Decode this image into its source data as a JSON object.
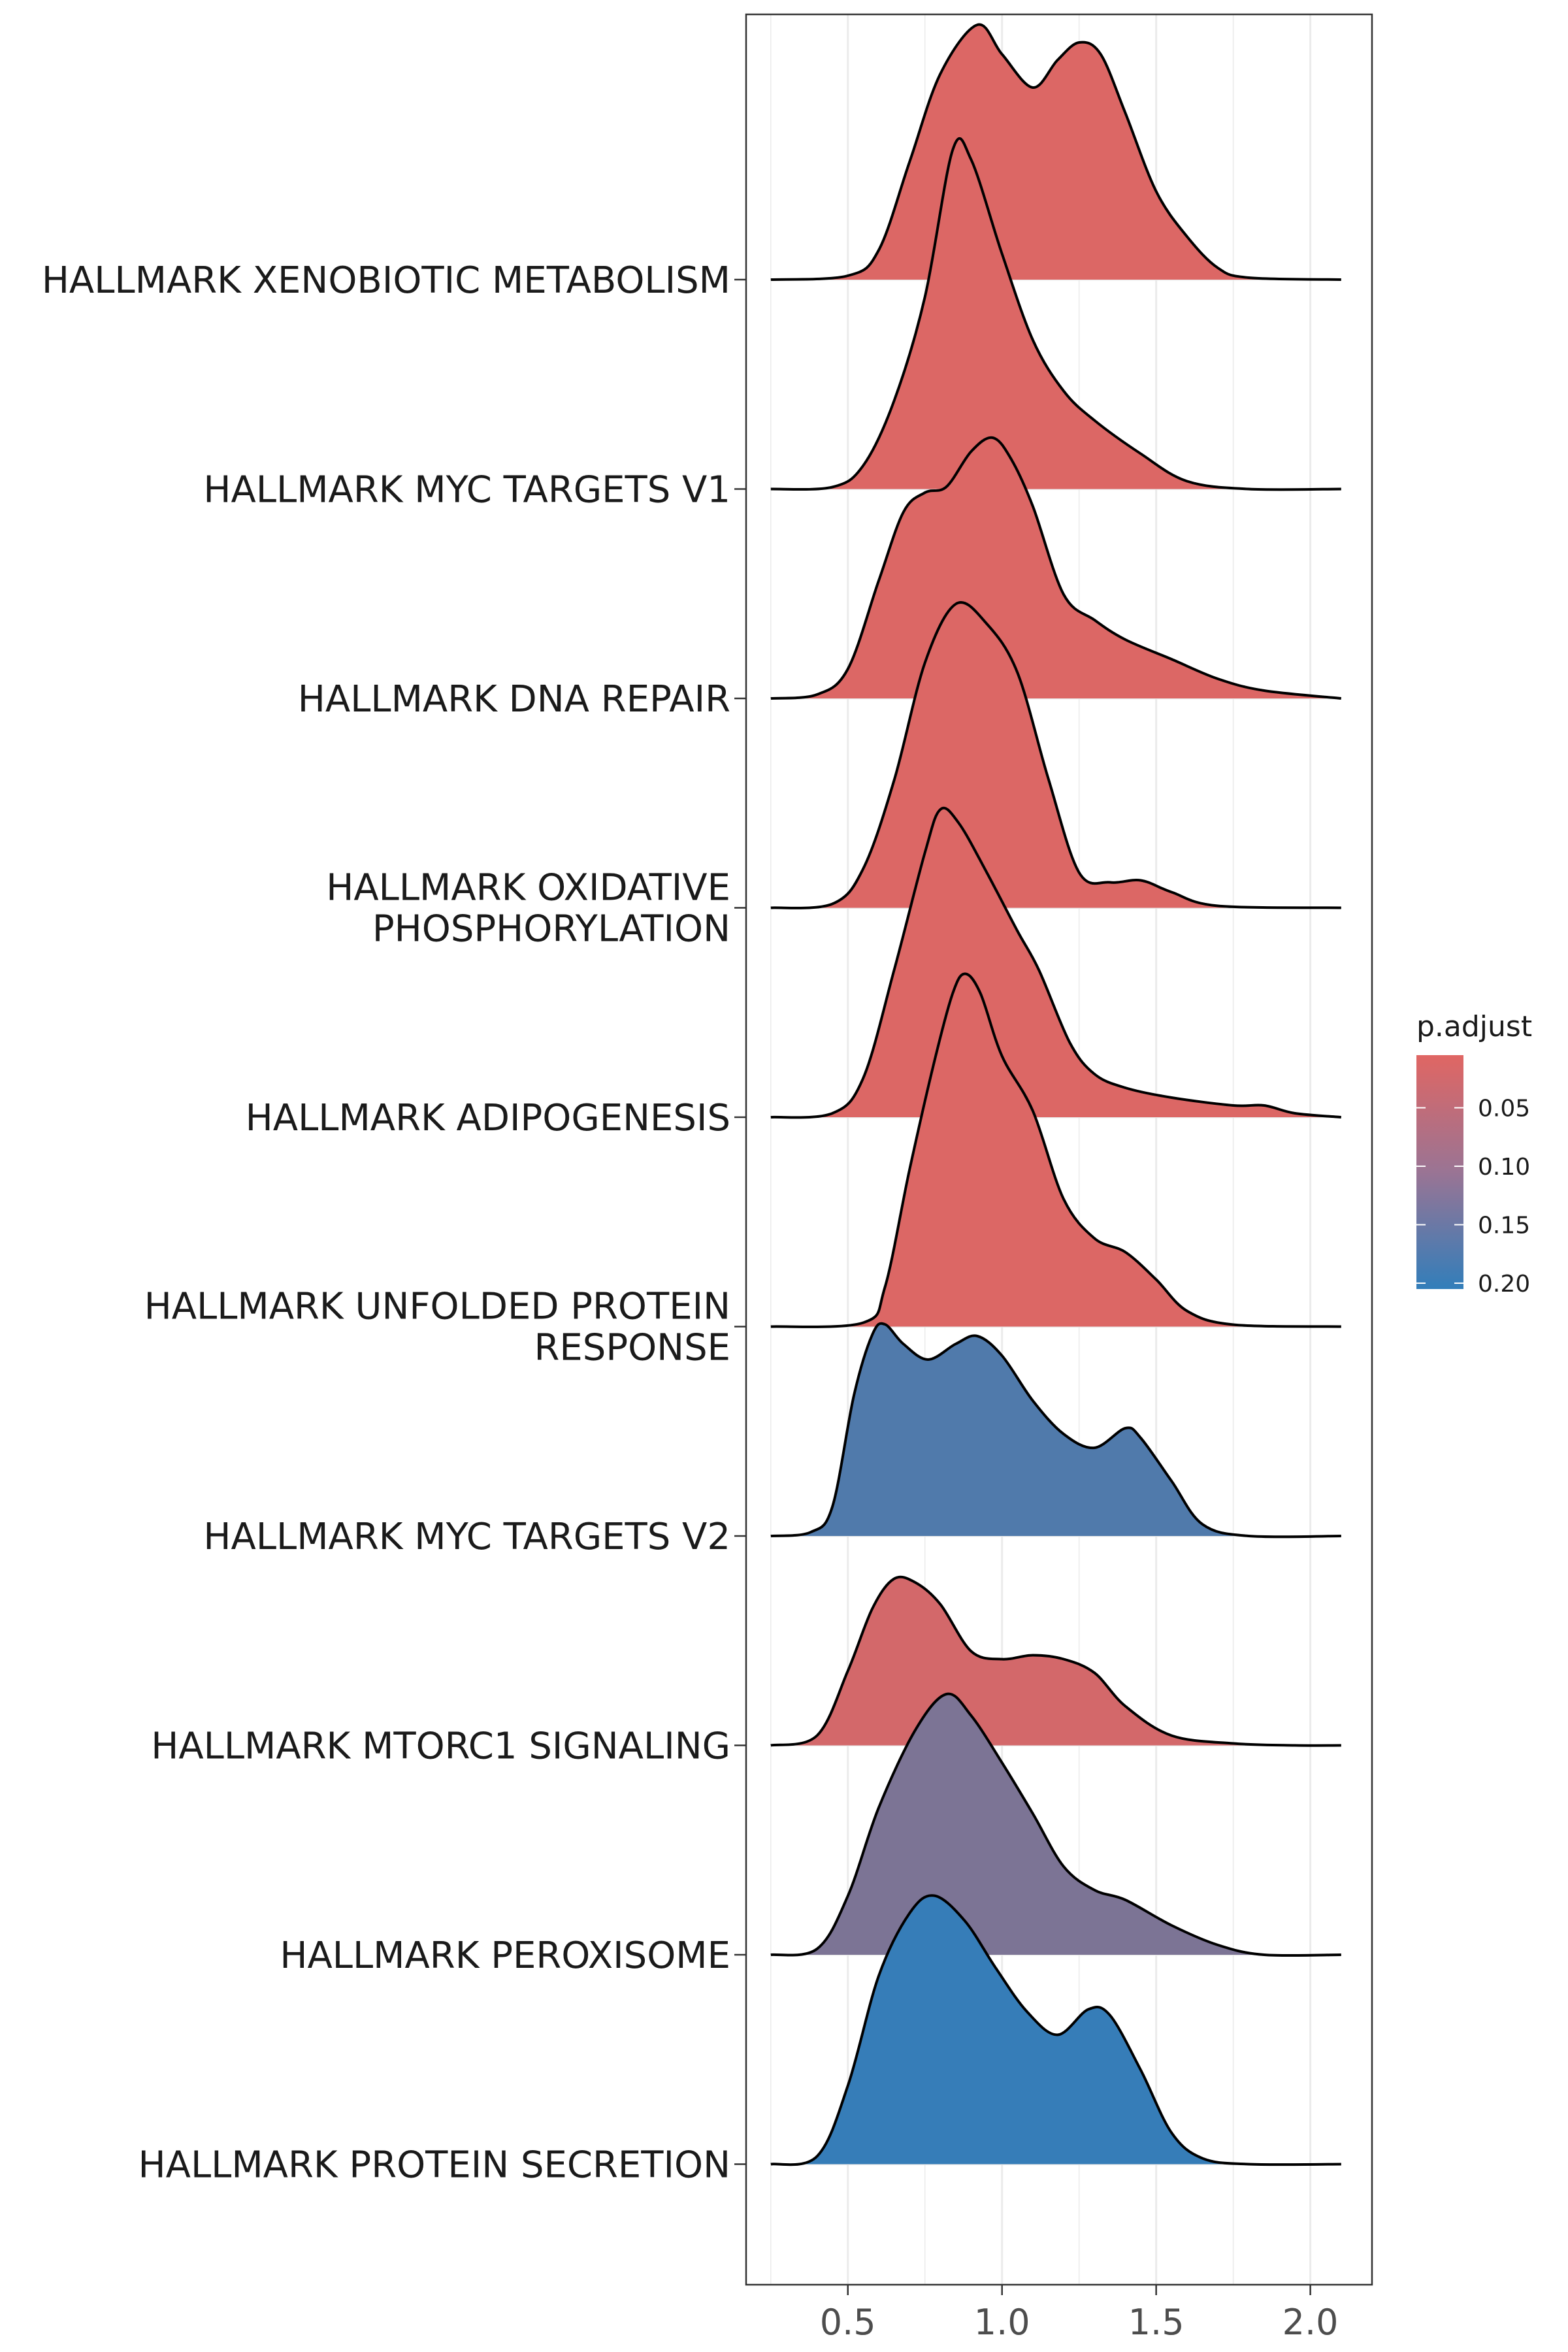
{
  "chart_data": {
    "type": "ridgeline",
    "title": "",
    "xlabel": "",
    "ylabel": "",
    "xlim": [
      0.17,
      2.2
    ],
    "xticks": [
      0.5,
      1.0,
      1.5,
      2.0
    ],
    "xtick_labels": [
      "0.5",
      "1.0",
      "1.5",
      "2.0"
    ],
    "grid": true,
    "color_low": "#E06663",
    "color_high": "#327EBA",
    "legend": {
      "title": "p.adjust",
      "position": "right",
      "range": [
        0.005,
        0.205
      ],
      "ticks": [
        0.05,
        0.1,
        0.15,
        0.2
      ],
      "tick_labels": [
        "0.05",
        "0.10",
        "0.15",
        "0.20"
      ]
    },
    "series": [
      {
        "name": "HALLMARK XENOBIOTIC METABOLISM",
        "p_adjust": 0.01,
        "density": [
          [
            0.25,
            0
          ],
          [
            0.5,
            0.02
          ],
          [
            0.6,
            0.15
          ],
          [
            0.7,
            0.6
          ],
          [
            0.8,
            1.05
          ],
          [
            0.92,
            1.3
          ],
          [
            1.0,
            1.15
          ],
          [
            1.1,
            0.98
          ],
          [
            1.18,
            1.12
          ],
          [
            1.25,
            1.21
          ],
          [
            1.32,
            1.15
          ],
          [
            1.4,
            0.85
          ],
          [
            1.5,
            0.45
          ],
          [
            1.6,
            0.22
          ],
          [
            1.7,
            0.06
          ],
          [
            1.8,
            0.01
          ],
          [
            2.1,
            0
          ]
        ]
      },
      {
        "name": "HALLMARK MYC TARGETS V1",
        "p_adjust": 0.01,
        "density": [
          [
            0.25,
            0
          ],
          [
            0.45,
            0.01
          ],
          [
            0.55,
            0.12
          ],
          [
            0.65,
            0.45
          ],
          [
            0.75,
            0.98
          ],
          [
            0.84,
            1.73
          ],
          [
            0.9,
            1.68
          ],
          [
            1.0,
            1.2
          ],
          [
            1.1,
            0.76
          ],
          [
            1.2,
            0.5
          ],
          [
            1.3,
            0.35
          ],
          [
            1.45,
            0.18
          ],
          [
            1.6,
            0.04
          ],
          [
            1.8,
            0
          ],
          [
            2.1,
            0
          ]
        ]
      },
      {
        "name": "HALLMARK DNA REPAIR",
        "p_adjust": 0.01,
        "density": [
          [
            0.25,
            0
          ],
          [
            0.4,
            0.02
          ],
          [
            0.5,
            0.15
          ],
          [
            0.6,
            0.6
          ],
          [
            0.68,
            0.95
          ],
          [
            0.75,
            1.05
          ],
          [
            0.82,
            1.08
          ],
          [
            0.9,
            1.26
          ],
          [
            0.97,
            1.33
          ],
          [
            1.03,
            1.22
          ],
          [
            1.1,
            0.98
          ],
          [
            1.2,
            0.53
          ],
          [
            1.3,
            0.4
          ],
          [
            1.4,
            0.3
          ],
          [
            1.55,
            0.2
          ],
          [
            1.7,
            0.1
          ],
          [
            1.85,
            0.04
          ],
          [
            2.1,
            0
          ]
        ]
      },
      {
        "name": "HALLMARK OXIDATIVE\nPHOSPHORYLATION",
        "p_adjust": 0.01,
        "density": [
          [
            0.25,
            0
          ],
          [
            0.45,
            0.02
          ],
          [
            0.55,
            0.2
          ],
          [
            0.65,
            0.65
          ],
          [
            0.75,
            1.25
          ],
          [
            0.85,
            1.55
          ],
          [
            0.95,
            1.45
          ],
          [
            1.05,
            1.2
          ],
          [
            1.15,
            0.66
          ],
          [
            1.25,
            0.18
          ],
          [
            1.35,
            0.13
          ],
          [
            1.45,
            0.14
          ],
          [
            1.55,
            0.08
          ],
          [
            1.7,
            0.01
          ],
          [
            2.1,
            0
          ]
        ]
      },
      {
        "name": "HALLMARK ADIPOGENESIS",
        "p_adjust": 0.01,
        "density": [
          [
            0.25,
            0
          ],
          [
            0.45,
            0.02
          ],
          [
            0.55,
            0.2
          ],
          [
            0.65,
            0.75
          ],
          [
            0.75,
            1.35
          ],
          [
            0.8,
            1.57
          ],
          [
            0.86,
            1.5
          ],
          [
            0.95,
            1.25
          ],
          [
            1.05,
            0.95
          ],
          [
            1.12,
            0.75
          ],
          [
            1.22,
            0.38
          ],
          [
            1.3,
            0.22
          ],
          [
            1.4,
            0.15
          ],
          [
            1.55,
            0.1
          ],
          [
            1.75,
            0.06
          ],
          [
            1.85,
            0.06
          ],
          [
            1.95,
            0.02
          ],
          [
            2.1,
            0
          ]
        ]
      },
      {
        "name": "HALLMARK UNFOLDED PROTEIN\nRESPONSE",
        "p_adjust": 0.01,
        "density": [
          [
            0.25,
            0
          ],
          [
            0.55,
            0.02
          ],
          [
            0.62,
            0.2
          ],
          [
            0.7,
            0.8
          ],
          [
            0.78,
            1.35
          ],
          [
            0.84,
            1.7
          ],
          [
            0.88,
            1.8
          ],
          [
            0.93,
            1.7
          ],
          [
            1.0,
            1.38
          ],
          [
            1.1,
            1.1
          ],
          [
            1.2,
            0.65
          ],
          [
            1.3,
            0.45
          ],
          [
            1.4,
            0.38
          ],
          [
            1.5,
            0.24
          ],
          [
            1.6,
            0.08
          ],
          [
            1.75,
            0.01
          ],
          [
            2.1,
            0
          ]
        ]
      },
      {
        "name": "HALLMARK MYC TARGETS V2",
        "p_adjust": 0.17,
        "density": [
          [
            0.25,
            0
          ],
          [
            0.38,
            0.02
          ],
          [
            0.45,
            0.15
          ],
          [
            0.52,
            0.72
          ],
          [
            0.58,
            1.03
          ],
          [
            0.62,
            1.08
          ],
          [
            0.68,
            0.98
          ],
          [
            0.76,
            0.9
          ],
          [
            0.85,
            0.98
          ],
          [
            0.92,
            1.02
          ],
          [
            1.0,
            0.92
          ],
          [
            1.1,
            0.69
          ],
          [
            1.2,
            0.52
          ],
          [
            1.3,
            0.45
          ],
          [
            1.4,
            0.55
          ],
          [
            1.45,
            0.5
          ],
          [
            1.55,
            0.28
          ],
          [
            1.65,
            0.06
          ],
          [
            1.8,
            0
          ],
          [
            2.1,
            0
          ]
        ]
      },
      {
        "name": "HALLMARK MTORC1 SIGNALING",
        "p_adjust": 0.02,
        "density": [
          [
            0.25,
            0
          ],
          [
            0.4,
            0.05
          ],
          [
            0.5,
            0.38
          ],
          [
            0.58,
            0.7
          ],
          [
            0.65,
            0.85
          ],
          [
            0.72,
            0.83
          ],
          [
            0.8,
            0.72
          ],
          [
            0.9,
            0.48
          ],
          [
            1.0,
            0.44
          ],
          [
            1.1,
            0.46
          ],
          [
            1.2,
            0.44
          ],
          [
            1.3,
            0.37
          ],
          [
            1.4,
            0.2
          ],
          [
            1.55,
            0.05
          ],
          [
            1.75,
            0.01
          ],
          [
            1.95,
            0
          ],
          [
            2.1,
            0
          ]
        ]
      },
      {
        "name": "HALLMARK PEROXISOME",
        "p_adjust": 0.12,
        "density": [
          [
            0.25,
            0
          ],
          [
            0.4,
            0.03
          ],
          [
            0.5,
            0.3
          ],
          [
            0.6,
            0.75
          ],
          [
            0.72,
            1.15
          ],
          [
            0.82,
            1.33
          ],
          [
            0.9,
            1.22
          ],
          [
            1.0,
            0.98
          ],
          [
            1.1,
            0.72
          ],
          [
            1.2,
            0.45
          ],
          [
            1.3,
            0.33
          ],
          [
            1.4,
            0.28
          ],
          [
            1.55,
            0.15
          ],
          [
            1.7,
            0.05
          ],
          [
            1.85,
            0
          ],
          [
            2.1,
            0
          ]
        ]
      },
      {
        "name": "HALLMARK PROTEIN SECRETION",
        "p_adjust": 0.2,
        "density": [
          [
            0.25,
            0
          ],
          [
            0.4,
            0.04
          ],
          [
            0.5,
            0.4
          ],
          [
            0.6,
            0.96
          ],
          [
            0.7,
            1.28
          ],
          [
            0.78,
            1.37
          ],
          [
            0.88,
            1.24
          ],
          [
            0.98,
            1.0
          ],
          [
            1.08,
            0.78
          ],
          [
            1.18,
            0.66
          ],
          [
            1.28,
            0.79
          ],
          [
            1.35,
            0.76
          ],
          [
            1.45,
            0.48
          ],
          [
            1.55,
            0.16
          ],
          [
            1.65,
            0.03
          ],
          [
            1.8,
            0
          ],
          [
            2.1,
            0
          ]
        ]
      }
    ]
  }
}
